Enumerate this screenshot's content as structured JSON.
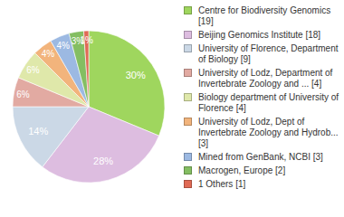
{
  "chart_data": {
    "type": "pie",
    "categories": [
      "Centre for Biodiversity Genomics [19]",
      "Beijing Genomics Institute [18]",
      "University of Florence, Department of Biology [9]",
      "University of Lodz, Department of Invertebrate Zoology and ... [4]",
      "Biology department of University of Florence [4]",
      "University of Lodz, Dept of Invertebrate Zoology and Hydrob... [3]",
      "Mined from GenBank, NCBI [3]",
      "Macrogen, Europe [2]",
      "1 Others [1]"
    ],
    "values": [
      30,
      28,
      14,
      6,
      6,
      4,
      4,
      3,
      1
    ],
    "value_labels": [
      "30%",
      "28%",
      "14%",
      "6%",
      "6%",
      "4%",
      "4%",
      "3%",
      "1%"
    ],
    "colors": [
      "#9fd65e",
      "#ddbde0",
      "#cbd8e6",
      "#e2aaa2",
      "#dfe8aa",
      "#f2b47c",
      "#9cb9e2",
      "#84be62",
      "#e06a55"
    ],
    "data_labels": true,
    "legend": "right"
  }
}
